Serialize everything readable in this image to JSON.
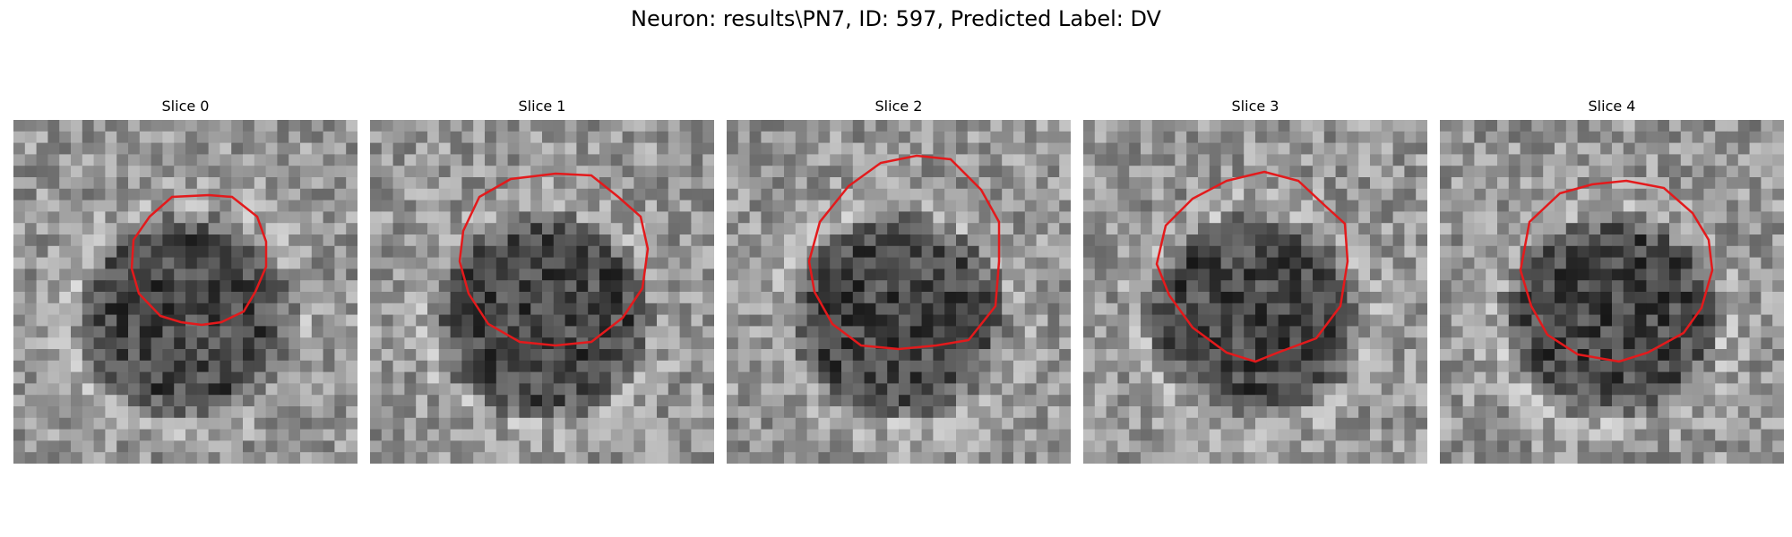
{
  "figure": {
    "title": "Neuron: results\\PN7, ID: 597, Predicted Label: DV"
  },
  "panels": [
    {
      "title": "Slice 0",
      "seed": 11,
      "contour_color": "#e31a1c",
      "contour": [
        [
          26,
          188
        ],
        [
          52,
          190
        ],
        [
          80,
          212
        ],
        [
          90,
          240
        ],
        [
          90,
          268
        ],
        [
          78,
          296
        ],
        [
          65,
          318
        ],
        [
          40,
          330
        ],
        [
          18,
          333
        ],
        [
          -5,
          330
        ],
        [
          -28,
          323
        ],
        [
          -52,
          298
        ],
        [
          -60,
          270
        ],
        [
          -58,
          238
        ],
        [
          -40,
          212
        ],
        [
          -15,
          190
        ]
      ]
    },
    {
      "title": "Slice 1",
      "seed": 23,
      "contour_color": "#e31a1c",
      "contour": [
        [
          15,
          164
        ],
        [
          55,
          166
        ],
        [
          85,
          190
        ],
        [
          110,
          212
        ],
        [
          118,
          248
        ],
        [
          112,
          292
        ],
        [
          90,
          325
        ],
        [
          55,
          352
        ],
        [
          15,
          356
        ],
        [
          -25,
          352
        ],
        [
          -60,
          332
        ],
        [
          -82,
          298
        ],
        [
          -92,
          262
        ],
        [
          -88,
          228
        ],
        [
          -70,
          190
        ],
        [
          -35,
          170
        ]
      ]
    },
    {
      "title": "Slice 2",
      "seed": 37,
      "contour_color": "#e31a1c",
      "contour": [
        [
          20,
          144
        ],
        [
          58,
          148
        ],
        [
          92,
          182
        ],
        [
          112,
          218
        ],
        [
          112,
          262
        ],
        [
          108,
          312
        ],
        [
          78,
          350
        ],
        [
          42,
          356
        ],
        [
          0,
          360
        ],
        [
          -42,
          356
        ],
        [
          -74,
          332
        ],
        [
          -94,
          296
        ],
        [
          -100,
          262
        ],
        [
          -88,
          218
        ],
        [
          -56,
          178
        ],
        [
          -20,
          152
        ]
      ]
    },
    {
      "title": "Slice 3",
      "seed": 51,
      "contour_color": "#e31a1c",
      "contour": [
        [
          10,
          162
        ],
        [
          48,
          172
        ],
        [
          78,
          200
        ],
        [
          100,
          220
        ],
        [
          103,
          262
        ],
        [
          95,
          312
        ],
        [
          68,
          348
        ],
        [
          25,
          364
        ],
        [
          0,
          374
        ],
        [
          -32,
          364
        ],
        [
          -70,
          336
        ],
        [
          -96,
          300
        ],
        [
          -110,
          265
        ],
        [
          -100,
          222
        ],
        [
          -70,
          192
        ],
        [
          -32,
          172
        ]
      ]
    },
    {
      "title": "Slice 4",
      "seed": 67,
      "contour_color": "#e31a1c",
      "contour": [
        [
          16,
          172
        ],
        [
          58,
          180
        ],
        [
          90,
          208
        ],
        [
          108,
          238
        ],
        [
          112,
          272
        ],
        [
          100,
          314
        ],
        [
          80,
          342
        ],
        [
          40,
          364
        ],
        [
          8,
          374
        ],
        [
          -38,
          366
        ],
        [
          -72,
          344
        ],
        [
          -90,
          312
        ],
        [
          -102,
          272
        ],
        [
          -92,
          218
        ],
        [
          -58,
          186
        ],
        [
          -22,
          176
        ]
      ]
    }
  ]
}
